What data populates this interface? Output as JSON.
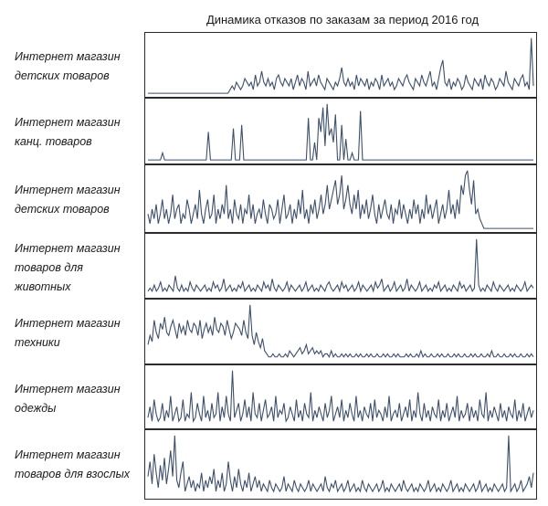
{
  "chart_data": {
    "type": "line",
    "title": "Динамика отказов по заказам за период 2016 год",
    "xlabel": "",
    "ylabel": "",
    "grid": false,
    "line_color": "#3d4f6b",
    "panels": [
      {
        "label_lines": [
          "Интернет магазин",
          "детских товаров"
        ],
        "values": [
          0,
          0,
          0,
          0,
          0,
          0,
          0,
          0,
          0,
          0,
          0,
          0,
          0,
          0,
          0,
          0,
          0,
          0,
          0,
          0,
          0,
          0,
          0,
          0,
          0,
          0,
          0,
          0,
          0,
          0,
          0,
          0,
          0,
          0,
          0,
          0,
          0,
          0,
          0,
          1,
          2,
          1,
          3,
          2,
          1,
          2,
          4,
          3,
          2,
          3,
          1,
          5,
          2,
          3,
          6,
          3,
          2,
          4,
          2,
          3,
          1,
          4,
          5,
          3,
          2,
          4,
          3,
          2,
          4,
          1,
          3,
          5,
          2,
          4,
          3,
          1,
          6,
          2,
          3,
          4,
          2,
          5,
          3,
          2,
          1,
          4,
          3,
          2,
          1,
          3,
          2,
          4,
          7,
          3,
          2,
          4,
          2,
          3,
          1,
          5,
          2,
          4,
          3,
          2,
          4,
          1,
          3,
          2,
          4,
          3,
          1,
          5,
          2,
          3,
          4,
          2,
          3,
          1,
          2,
          4,
          3,
          2,
          4,
          5,
          3,
          2,
          1,
          4,
          3,
          2,
          5,
          3,
          2,
          4,
          6,
          2,
          3,
          1,
          4,
          7,
          9,
          3,
          2,
          4,
          1,
          3,
          2,
          4,
          3,
          1,
          2,
          5,
          3,
          2,
          1,
          4,
          3,
          2,
          4,
          1,
          5,
          3,
          2,
          4,
          3,
          1,
          2,
          4,
          3,
          2,
          6,
          3,
          2,
          1,
          4,
          3,
          2,
          4,
          5,
          2,
          3,
          1,
          15,
          2
        ]
      },
      {
        "label_lines": [
          "Интернет магазин",
          "канц. товаров"
        ],
        "values": [
          0,
          0,
          0,
          0,
          0,
          0,
          0,
          2,
          0,
          0,
          0,
          0,
          0,
          0,
          0,
          0,
          0,
          0,
          0,
          0,
          0,
          0,
          0,
          0,
          0,
          0,
          0,
          0,
          0,
          8,
          0,
          0,
          0,
          0,
          0,
          0,
          0,
          0,
          0,
          0,
          0,
          9,
          0,
          0,
          0,
          10,
          0,
          0,
          0,
          0,
          0,
          0,
          0,
          0,
          0,
          0,
          0,
          0,
          0,
          0,
          0,
          0,
          0,
          0,
          0,
          0,
          0,
          0,
          0,
          0,
          0,
          0,
          0,
          0,
          0,
          0,
          0,
          12,
          0,
          0,
          5,
          0,
          12,
          8,
          15,
          4,
          16,
          7,
          9,
          5,
          13,
          0,
          0,
          10,
          0,
          6,
          0,
          0,
          2,
          0,
          0,
          0,
          14,
          0,
          0,
          0,
          0,
          0,
          0,
          0,
          0,
          0,
          0,
          0,
          0,
          0,
          0,
          0,
          0,
          0,
          0,
          0,
          0,
          0,
          0,
          0,
          0,
          0,
          0,
          0,
          0,
          0,
          0,
          0,
          0,
          0,
          0,
          0,
          0,
          0,
          0,
          0,
          0,
          0,
          0,
          0,
          0,
          0,
          0,
          0,
          0,
          0,
          0,
          0,
          0,
          0,
          0,
          0,
          0,
          0,
          0,
          0,
          0,
          0,
          0,
          0,
          0,
          0,
          0,
          0,
          0,
          0,
          0,
          0,
          0,
          0,
          0,
          0,
          0,
          0,
          0,
          0,
          0,
          0,
          0,
          0
        ]
      },
      {
        "label_lines": [
          "Интернет магазин",
          "детских товаров"
        ],
        "values": [
          3,
          1,
          4,
          2,
          5,
          1,
          3,
          6,
          2,
          4,
          1,
          3,
          7,
          2,
          4,
          5,
          1,
          3,
          2,
          6,
          4,
          1,
          3,
          5,
          2,
          8,
          3,
          1,
          4,
          6,
          2,
          3,
          7,
          1,
          4,
          2,
          5,
          3,
          9,
          2,
          4,
          1,
          6,
          3,
          2,
          5,
          1,
          4,
          3,
          7,
          2,
          5,
          1,
          3,
          4,
          2,
          6,
          3,
          1,
          5,
          4,
          2,
          3,
          6,
          1,
          4,
          7,
          2,
          3,
          5,
          1,
          4,
          2,
          6,
          3,
          8,
          2,
          4,
          1,
          5,
          3,
          6,
          2,
          4,
          7,
          3,
          5,
          9,
          4,
          6,
          8,
          10,
          5,
          7,
          11,
          4,
          6,
          9,
          5,
          3,
          7,
          4,
          8,
          2,
          5,
          3,
          6,
          2,
          4,
          7,
          3,
          1,
          5,
          2,
          4,
          6,
          3,
          2,
          5,
          1,
          4,
          3,
          6,
          2,
          5,
          3,
          1,
          4,
          2,
          6,
          3,
          5,
          1,
          4,
          2,
          7,
          3,
          5,
          2,
          4,
          6,
          1,
          3,
          5,
          2,
          4,
          8,
          3,
          5,
          2,
          6,
          3,
          9,
          7,
          11,
          12,
          8,
          5,
          10,
          3,
          4,
          2,
          1,
          0,
          0,
          0,
          0,
          0,
          0,
          0,
          0,
          0,
          0,
          0,
          0,
          0,
          0,
          0,
          0,
          0,
          0,
          0,
          0,
          0,
          0,
          0,
          0,
          0
        ]
      },
      {
        "label_lines": [
          "Интернет магазин",
          "товаров для",
          "животных"
        ],
        "values": [
          1,
          2,
          1,
          3,
          1,
          2,
          4,
          1,
          2,
          1,
          3,
          2,
          1,
          6,
          2,
          1,
          3,
          1,
          2,
          1,
          4,
          2,
          1,
          3,
          2,
          1,
          2,
          3,
          1,
          2,
          1,
          4,
          2,
          3,
          1,
          2,
          5,
          1,
          2,
          3,
          1,
          2,
          1,
          3,
          2,
          4,
          1,
          2,
          3,
          1,
          2,
          1,
          3,
          2,
          1,
          4,
          2,
          3,
          1,
          5,
          2,
          1,
          3,
          2,
          1,
          2,
          4,
          1,
          3,
          2,
          1,
          2,
          3,
          1,
          2,
          4,
          1,
          2,
          3,
          1,
          2,
          1,
          3,
          2,
          1,
          3,
          4,
          2,
          1,
          2,
          3,
          1,
          4,
          2,
          3,
          1,
          2,
          3,
          1,
          2,
          4,
          1,
          3,
          2,
          1,
          2,
          3,
          1,
          4,
          2,
          3,
          5,
          1,
          2,
          3,
          1,
          2,
          4,
          1,
          2,
          3,
          1,
          2,
          5,
          1,
          3,
          2,
          1,
          2,
          4,
          1,
          2,
          3,
          1,
          2,
          1,
          3,
          2,
          4,
          1,
          2,
          3,
          1,
          2,
          1,
          3,
          2,
          1,
          4,
          2,
          3,
          1,
          2,
          3,
          1,
          2,
          18,
          3,
          1,
          2,
          1,
          3,
          2,
          1,
          4,
          2,
          1,
          3,
          2,
          1,
          2,
          3,
          1,
          2,
          1,
          3,
          2,
          1,
          2,
          4,
          1,
          2,
          3,
          2
        ]
      },
      {
        "label_lines": [
          "Интернет магазин",
          "техники"
        ],
        "values": [
          5,
          8,
          6,
          13,
          9,
          7,
          12,
          10,
          14,
          9,
          8,
          11,
          13,
          10,
          7,
          12,
          9,
          11,
          8,
          13,
          10,
          9,
          12,
          11,
          8,
          13,
          7,
          10,
          12,
          9,
          11,
          8,
          14,
          10,
          9,
          12,
          11,
          8,
          13,
          10,
          7,
          9,
          12,
          11,
          10,
          8,
          13,
          9,
          7,
          18,
          8,
          5,
          9,
          6,
          4,
          7,
          3,
          2,
          1,
          1,
          2,
          1,
          1,
          2,
          1,
          1,
          2,
          1,
          3,
          2,
          1,
          2,
          3,
          4,
          2,
          3,
          5,
          2,
          3,
          4,
          2,
          3,
          2,
          3,
          1,
          2,
          2,
          1,
          3,
          1,
          2,
          1,
          1,
          2,
          1,
          2,
          1,
          2,
          1,
          1,
          2,
          1,
          2,
          1,
          1,
          2,
          1,
          2,
          1,
          1,
          2,
          1,
          1,
          2,
          1,
          2,
          1,
          1,
          2,
          1,
          2,
          1,
          1,
          1,
          2,
          1,
          2,
          1,
          1,
          2,
          1,
          3,
          1,
          2,
          1,
          1,
          2,
          1,
          1,
          2,
          1,
          2,
          1,
          1,
          2,
          1,
          1,
          2,
          1,
          2,
          1,
          1,
          2,
          1,
          1,
          2,
          1,
          2,
          1,
          1,
          2,
          1,
          1,
          2,
          1,
          3,
          1,
          1,
          2,
          1,
          1,
          2,
          1,
          1,
          2,
          1,
          2,
          1,
          1,
          2,
          1,
          1,
          2,
          1,
          2,
          1
        ]
      },
      {
        "label_lines": [
          "Интернет магазин",
          "одежды"
        ],
        "values": [
          2,
          5,
          1,
          7,
          3,
          1,
          2,
          6,
          1,
          4,
          2,
          8,
          1,
          3,
          5,
          1,
          2,
          7,
          1,
          3,
          2,
          9,
          1,
          2,
          6,
          3,
          1,
          8,
          2,
          4,
          1,
          6,
          2,
          3,
          9,
          1,
          5,
          2,
          8,
          3,
          1,
          15,
          2,
          4,
          6,
          1,
          3,
          7,
          2,
          5,
          1,
          9,
          3,
          2,
          6,
          1,
          4,
          7,
          2,
          3,
          5,
          1,
          8,
          2,
          4,
          3,
          6,
          1,
          2,
          5,
          3,
          1,
          7,
          2,
          4,
          1,
          6,
          3,
          2,
          9,
          1,
          4,
          2,
          5,
          3,
          1,
          6,
          2,
          4,
          8,
          1,
          3,
          5,
          2,
          7,
          1,
          4,
          2,
          6,
          3,
          1,
          8,
          2,
          4,
          1,
          5,
          3,
          2,
          6,
          1,
          7,
          2,
          4,
          3,
          1,
          5,
          2,
          8,
          1,
          3,
          4,
          2,
          6,
          1,
          3,
          5,
          2,
          7,
          1,
          4,
          2,
          9,
          3,
          1,
          6,
          2,
          4,
          1,
          5,
          3,
          2,
          7,
          1,
          4,
          2,
          6,
          1,
          3,
          5,
          2,
          8,
          1,
          4,
          2,
          3,
          6,
          1,
          5,
          2,
          4,
          1,
          7,
          3,
          2,
          9,
          1,
          4,
          2,
          5,
          3,
          1,
          6,
          2,
          4,
          1,
          5,
          3,
          2,
          7,
          1,
          4,
          2,
          6,
          1,
          3,
          5,
          2,
          4
        ]
      },
      {
        "label_lines": [
          "Интернет магазин",
          "товаров для взослых"
        ],
        "values": [
          5,
          9,
          3,
          11,
          6,
          2,
          8,
          4,
          10,
          3,
          7,
          12,
          5,
          16,
          4,
          2,
          6,
          9,
          1,
          3,
          5,
          2,
          4,
          1,
          3,
          2,
          6,
          1,
          4,
          2,
          5,
          3,
          7,
          1,
          4,
          2,
          6,
          1,
          3,
          9,
          4,
          1,
          5,
          2,
          7,
          3,
          1,
          4,
          2,
          6,
          1,
          3,
          5,
          2,
          4,
          1,
          3,
          2,
          1,
          4,
          2,
          1,
          3,
          2,
          1,
          2,
          5,
          1,
          3,
          2,
          1,
          4,
          2,
          1,
          3,
          2,
          1,
          2,
          4,
          1,
          3,
          2,
          1,
          2,
          3,
          1,
          5,
          2,
          1,
          3,
          2,
          4,
          1,
          2,
          3,
          1,
          2,
          4,
          1,
          2,
          3,
          1,
          2,
          1,
          4,
          2,
          1,
          3,
          2,
          1,
          2,
          3,
          1,
          2,
          4,
          1,
          2,
          1,
          3,
          2,
          1,
          2,
          3,
          1,
          4,
          2,
          1,
          2,
          3,
          1,
          2,
          1,
          3,
          2,
          1,
          2,
          4,
          1,
          2,
          3,
          1,
          2,
          1,
          3,
          2,
          1,
          2,
          4,
          1,
          2,
          3,
          1,
          2,
          1,
          3,
          2,
          1,
          2,
          3,
          1,
          2,
          4,
          1,
          2,
          3,
          1,
          2,
          1,
          3,
          2,
          1,
          2,
          3,
          1,
          2,
          16,
          1,
          2,
          3,
          1,
          2,
          4,
          1,
          2,
          3,
          5,
          2,
          6
        ]
      }
    ]
  }
}
